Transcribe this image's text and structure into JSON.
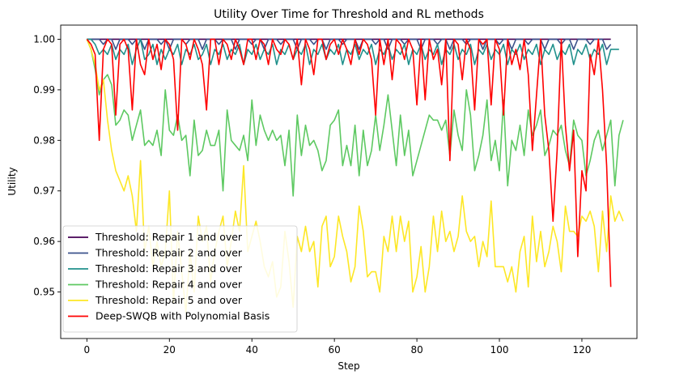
{
  "chart_data": {
    "type": "line",
    "title": "Utility Over Time for Threshold and RL methods",
    "xlabel": "Step",
    "ylabel": "Utility",
    "xlim": [
      -6.35,
      133.35
    ],
    "ylim": [
      0.9408,
      1.0028
    ],
    "xticks": [
      0,
      20,
      40,
      60,
      80,
      100,
      120
    ],
    "yticks": [
      0.95,
      0.96,
      0.97,
      0.98,
      0.99,
      1.0
    ],
    "ytick_labels": [
      "0.95",
      "0.96",
      "0.97",
      "0.98",
      "0.99",
      "1.00"
    ],
    "grid": false,
    "legend_position": "lower-left",
    "series": [
      {
        "name": "Threshold: Repair 1 and over",
        "color": "#440154",
        "values": [
          1.0,
          1.0,
          1.0,
          1.0,
          1.0,
          1.0,
          1.0,
          1.0,
          1.0,
          1.0,
          1.0,
          1.0,
          1.0,
          1.0,
          1.0,
          1.0,
          1.0,
          1.0,
          1.0,
          1.0,
          1.0,
          1.0,
          1.0,
          1.0,
          1.0,
          1.0,
          1.0,
          1.0,
          1.0,
          1.0,
          1.0,
          1.0,
          1.0,
          1.0,
          1.0,
          1.0,
          1.0,
          1.0,
          1.0,
          1.0,
          1.0,
          1.0,
          1.0,
          1.0,
          1.0,
          1.0,
          1.0,
          1.0,
          1.0,
          1.0,
          1.0,
          1.0,
          1.0,
          1.0,
          1.0,
          1.0,
          1.0,
          1.0,
          1.0,
          1.0,
          1.0,
          1.0,
          1.0,
          1.0,
          1.0,
          1.0,
          1.0,
          1.0,
          1.0,
          1.0,
          1.0,
          1.0,
          1.0,
          1.0,
          1.0,
          1.0,
          1.0,
          1.0,
          1.0,
          1.0,
          1.0,
          1.0,
          1.0,
          1.0,
          1.0,
          1.0,
          1.0,
          1.0,
          1.0,
          1.0,
          1.0,
          1.0,
          1.0,
          1.0,
          1.0,
          1.0,
          1.0,
          1.0,
          1.0,
          1.0,
          1.0,
          1.0,
          1.0,
          1.0,
          1.0,
          1.0,
          1.0,
          1.0,
          1.0,
          1.0,
          1.0,
          1.0,
          1.0,
          1.0,
          1.0,
          1.0,
          1.0,
          1.0,
          1.0,
          1.0,
          1.0,
          1.0,
          1.0,
          1.0,
          1.0,
          1.0,
          1.0,
          1.0
        ]
      },
      {
        "name": "Threshold: Repair 2 and over",
        "color": "#3b528b",
        "values": [
          1.0,
          1.0,
          1.0,
          1.0,
          0.999,
          1.0,
          1.0,
          0.998,
          1.0,
          1.0,
          1.0,
          0.999,
          1.0,
          1.0,
          0.998,
          1.0,
          1.0,
          1.0,
          0.999,
          1.0,
          0.998,
          1.0,
          1.0,
          1.0,
          0.999,
          1.0,
          1.0,
          1.0,
          0.998,
          1.0,
          1.0,
          1.0,
          0.999,
          1.0,
          1.0,
          1.0,
          0.998,
          1.0,
          1.0,
          1.0,
          0.999,
          1.0,
          1.0,
          0.998,
          1.0,
          1.0,
          1.0,
          0.999,
          1.0,
          1.0,
          1.0,
          0.998,
          1.0,
          1.0,
          1.0,
          0.999,
          1.0,
          1.0,
          0.998,
          1.0,
          1.0,
          1.0,
          0.999,
          1.0,
          1.0,
          1.0,
          0.998,
          1.0,
          1.0,
          1.0,
          0.999,
          1.0,
          1.0,
          0.998,
          1.0,
          1.0,
          1.0,
          0.999,
          1.0,
          1.0,
          1.0,
          0.998,
          1.0,
          1.0,
          1.0,
          0.999,
          1.0,
          1.0,
          0.998,
          1.0,
          1.0,
          1.0,
          0.999,
          1.0,
          1.0,
          1.0,
          0.998,
          1.0,
          1.0,
          1.0,
          0.999,
          1.0,
          1.0,
          0.998,
          1.0,
          1.0,
          1.0,
          0.999,
          1.0,
          1.0,
          1.0,
          0.998,
          1.0,
          1.0,
          1.0,
          0.999,
          1.0,
          1.0,
          0.998,
          1.0,
          1.0,
          1.0,
          0.999,
          1.0,
          1.0,
          1.0,
          0.998,
          0.999
        ]
      },
      {
        "name": "Threshold: Repair 3 and over",
        "color": "#21918c",
        "values": [
          1.0,
          1.0,
          0.999,
          0.997,
          0.998,
          0.997,
          0.999,
          0.996,
          0.998,
          0.997,
          0.999,
          0.995,
          0.998,
          1.0,
          0.996,
          0.997,
          0.999,
          0.995,
          0.998,
          0.996,
          0.998,
          0.997,
          0.999,
          0.995,
          0.998,
          0.997,
          0.999,
          0.996,
          0.997,
          0.999,
          0.995,
          0.998,
          0.997,
          0.999,
          0.996,
          0.998,
          0.997,
          0.999,
          0.995,
          0.998,
          0.997,
          0.999,
          0.996,
          0.998,
          0.997,
          0.999,
          0.995,
          0.998,
          0.997,
          0.999,
          0.996,
          0.998,
          0.997,
          0.999,
          0.995,
          0.998,
          0.997,
          0.999,
          0.996,
          0.998,
          0.997,
          0.999,
          0.995,
          0.998,
          0.997,
          0.999,
          0.996,
          0.998,
          0.997,
          0.999,
          0.995,
          0.998,
          0.997,
          0.999,
          0.996,
          0.998,
          0.997,
          0.999,
          0.995,
          0.998,
          0.997,
          0.999,
          0.996,
          0.998,
          0.997,
          0.999,
          0.995,
          0.998,
          0.997,
          0.999,
          0.996,
          0.998,
          0.997,
          0.999,
          0.995,
          0.998,
          0.997,
          0.999,
          0.996,
          0.998,
          0.997,
          0.999,
          0.995,
          0.998,
          0.997,
          0.999,
          0.996,
          0.998,
          0.997,
          0.999,
          0.995,
          0.998,
          0.997,
          0.999,
          0.996,
          0.998,
          0.997,
          0.999,
          0.995,
          0.998,
          0.997,
          0.999,
          0.996,
          0.998,
          0.997,
          0.999,
          0.995,
          0.998,
          0.998,
          0.998
        ]
      },
      {
        "name": "Threshold: Repair 4 and over",
        "color": "#5ec962",
        "values": [
          1.0,
          0.998,
          0.994,
          0.989,
          0.992,
          0.993,
          0.991,
          0.983,
          0.984,
          0.986,
          0.985,
          0.98,
          0.983,
          0.986,
          0.979,
          0.98,
          0.979,
          0.982,
          0.977,
          0.99,
          0.982,
          0.981,
          0.985,
          0.98,
          0.981,
          0.973,
          0.984,
          0.977,
          0.978,
          0.982,
          0.979,
          0.979,
          0.982,
          0.97,
          0.986,
          0.98,
          0.979,
          0.978,
          0.981,
          0.976,
          0.988,
          0.979,
          0.985,
          0.982,
          0.98,
          0.982,
          0.98,
          0.981,
          0.975,
          0.982,
          0.969,
          0.985,
          0.977,
          0.983,
          0.979,
          0.98,
          0.978,
          0.974,
          0.976,
          0.983,
          0.984,
          0.986,
          0.975,
          0.979,
          0.975,
          0.983,
          0.973,
          0.982,
          0.975,
          0.978,
          0.985,
          0.978,
          0.983,
          0.989,
          0.982,
          0.975,
          0.985,
          0.977,
          0.982,
          0.973,
          0.976,
          0.979,
          0.982,
          0.985,
          0.984,
          0.984,
          0.982,
          0.984,
          0.977,
          0.986,
          0.981,
          0.978,
          0.99,
          0.985,
          0.974,
          0.977,
          0.981,
          0.988,
          0.976,
          0.98,
          0.974,
          0.988,
          0.971,
          0.98,
          0.978,
          0.983,
          0.977,
          0.986,
          0.981,
          0.983,
          0.986,
          0.977,
          0.979,
          0.982,
          0.981,
          0.983,
          0.978,
          0.975,
          0.984,
          0.981,
          0.98,
          0.973,
          0.976,
          0.98,
          0.982,
          0.978,
          0.981,
          0.984,
          0.971,
          0.981,
          0.984
        ]
      },
      {
        "name": "Threshold: Repair 5 and over",
        "color": "#fde725",
        "values": [
          1.0,
          0.998,
          0.995,
          0.99,
          0.992,
          0.984,
          0.978,
          0.974,
          0.972,
          0.97,
          0.973,
          0.969,
          0.962,
          0.976,
          0.958,
          0.963,
          0.955,
          0.96,
          0.955,
          0.958,
          0.97,
          0.948,
          0.962,
          0.954,
          0.946,
          0.958,
          0.95,
          0.965,
          0.96,
          0.963,
          0.952,
          0.958,
          0.962,
          0.965,
          0.955,
          0.96,
          0.966,
          0.962,
          0.975,
          0.958,
          0.961,
          0.964,
          0.96,
          0.955,
          0.953,
          0.956,
          0.949,
          0.951,
          0.962,
          0.956,
          0.947,
          0.961,
          0.958,
          0.963,
          0.958,
          0.96,
          0.951,
          0.963,
          0.965,
          0.955,
          0.957,
          0.965,
          0.961,
          0.958,
          0.952,
          0.955,
          0.967,
          0.962,
          0.953,
          0.954,
          0.954,
          0.95,
          0.961,
          0.958,
          0.965,
          0.958,
          0.965,
          0.96,
          0.964,
          0.95,
          0.953,
          0.959,
          0.95,
          0.955,
          0.965,
          0.958,
          0.966,
          0.96,
          0.962,
          0.958,
          0.961,
          0.969,
          0.962,
          0.96,
          0.961,
          0.955,
          0.96,
          0.957,
          0.968,
          0.955,
          0.955,
          0.955,
          0.952,
          0.955,
          0.95,
          0.958,
          0.961,
          0.951,
          0.965,
          0.956,
          0.962,
          0.955,
          0.958,
          0.963,
          0.96,
          0.954,
          0.967,
          0.962,
          0.962,
          0.961,
          0.965,
          0.964,
          0.966,
          0.963,
          0.954,
          0.966,
          0.958,
          0.969,
          0.964,
          0.966,
          0.964
        ]
      },
      {
        "name": "Deep-SWQB with Polynomial Basis",
        "color": "#ff0000",
        "values": [
          1.0,
          0.999,
          0.997,
          0.98,
          0.998,
          1.0,
          0.999,
          0.985,
          0.999,
          1.0,
          0.998,
          0.986,
          1.0,
          0.995,
          0.993,
          1.0,
          0.996,
          0.999,
          0.994,
          1.0,
          0.999,
          0.996,
          0.982,
          1.0,
          0.999,
          0.996,
          1.0,
          0.998,
          0.995,
          0.986,
          1.0,
          1.0,
          0.995,
          1.0,
          0.999,
          0.996,
          1.0,
          0.998,
          0.995,
          1.0,
          1.0,
          0.996,
          1.0,
          0.999,
          0.995,
          1.0,
          0.998,
          0.997,
          1.0,
          0.999,
          0.996,
          1.0,
          0.991,
          1.0,
          0.998,
          0.993,
          1.0,
          1.0,
          0.996,
          0.999,
          1.0,
          0.997,
          1.0,
          0.998,
          0.995,
          1.0,
          0.997,
          1.0,
          0.999,
          0.996,
          0.985,
          1.0,
          0.995,
          1.0,
          0.992,
          1.0,
          0.999,
          0.996,
          1.0,
          0.998,
          0.987,
          1.0,
          0.988,
          1.0,
          0.996,
          0.998,
          0.991,
          1.0,
          0.976,
          1.0,
          0.999,
          0.992,
          1.0,
          0.998,
          0.986,
          1.0,
          0.999,
          1.0,
          0.987,
          1.0,
          0.998,
          0.985,
          1.0,
          0.995,
          0.998,
          0.994,
          1.0,
          0.993,
          0.978,
          0.989,
          1.0,
          0.985,
          0.978,
          0.964,
          0.978,
          1.0,
          0.983,
          0.974,
          0.982,
          0.957,
          0.974,
          0.97,
          0.997,
          0.993,
          1.0,
          0.99,
          0.975,
          0.951
        ]
      }
    ]
  }
}
